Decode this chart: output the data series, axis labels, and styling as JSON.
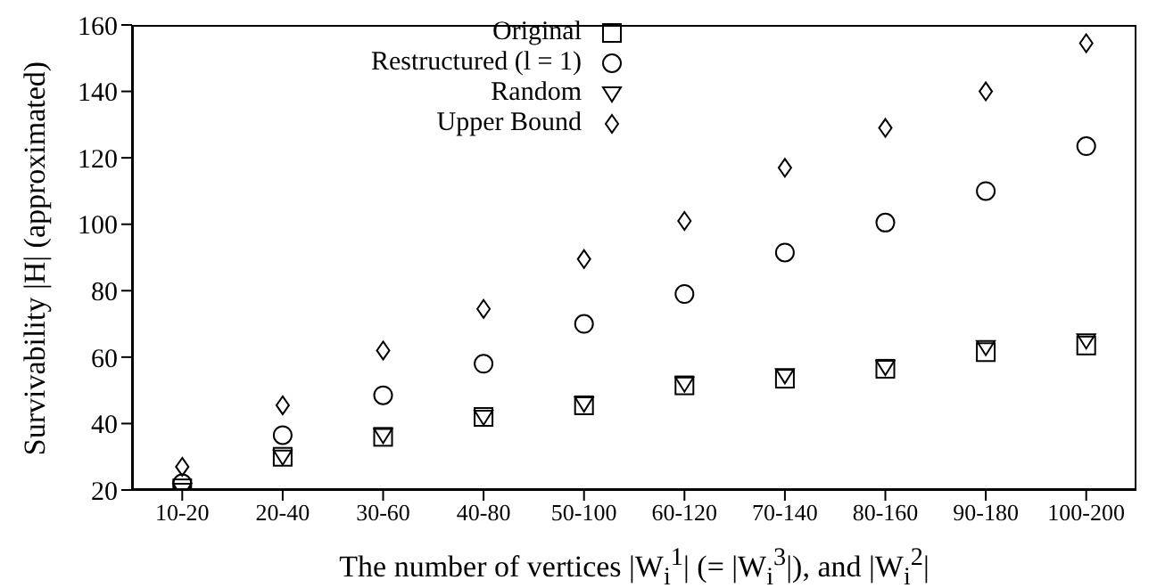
{
  "chart_data": {
    "type": "scatter",
    "xlabel": "The number of vertices |W$_{i}$$^{1}$| (= |W$_{i}$$^{3}$|), and |W$_{i}$$^{2}$|",
    "ylabel": "Survivability |H| (approximated)",
    "categories": [
      "10-20",
      "20-40",
      "30-60",
      "40-80",
      "50-100",
      "60-120",
      "70-140",
      "80-160",
      "90-180",
      "100-200"
    ],
    "ylim": [
      20,
      160
    ],
    "yticks": [
      20,
      40,
      60,
      80,
      100,
      120,
      140,
      160
    ],
    "grid": false,
    "legend": "top left",
    "series": [
      {
        "name": "Original",
        "color": "#000000",
        "marker": "square",
        "values": [
          20.5,
          30,
          36,
          42,
          45.5,
          51.5,
          53.5,
          56.5,
          61.5,
          63.5
        ]
      },
      {
        "name": "Restructured (l = 1)",
        "color": "#000000",
        "marker": "circle",
        "values": [
          22,
          36.5,
          48.5,
          58,
          70,
          79,
          91.5,
          100.5,
          110,
          123.5
        ]
      },
      {
        "name": "Random",
        "color": "#000000",
        "marker": "triangle",
        "values": [
          20,
          30,
          36.5,
          42,
          46,
          52,
          54.5,
          57,
          63,
          65
        ]
      },
      {
        "name": "Upper Bound",
        "color": "#000000",
        "marker": "diamond",
        "values": [
          27,
          45.5,
          62,
          74.5,
          89.5,
          101,
          117,
          129,
          140,
          154.5
        ]
      }
    ]
  }
}
